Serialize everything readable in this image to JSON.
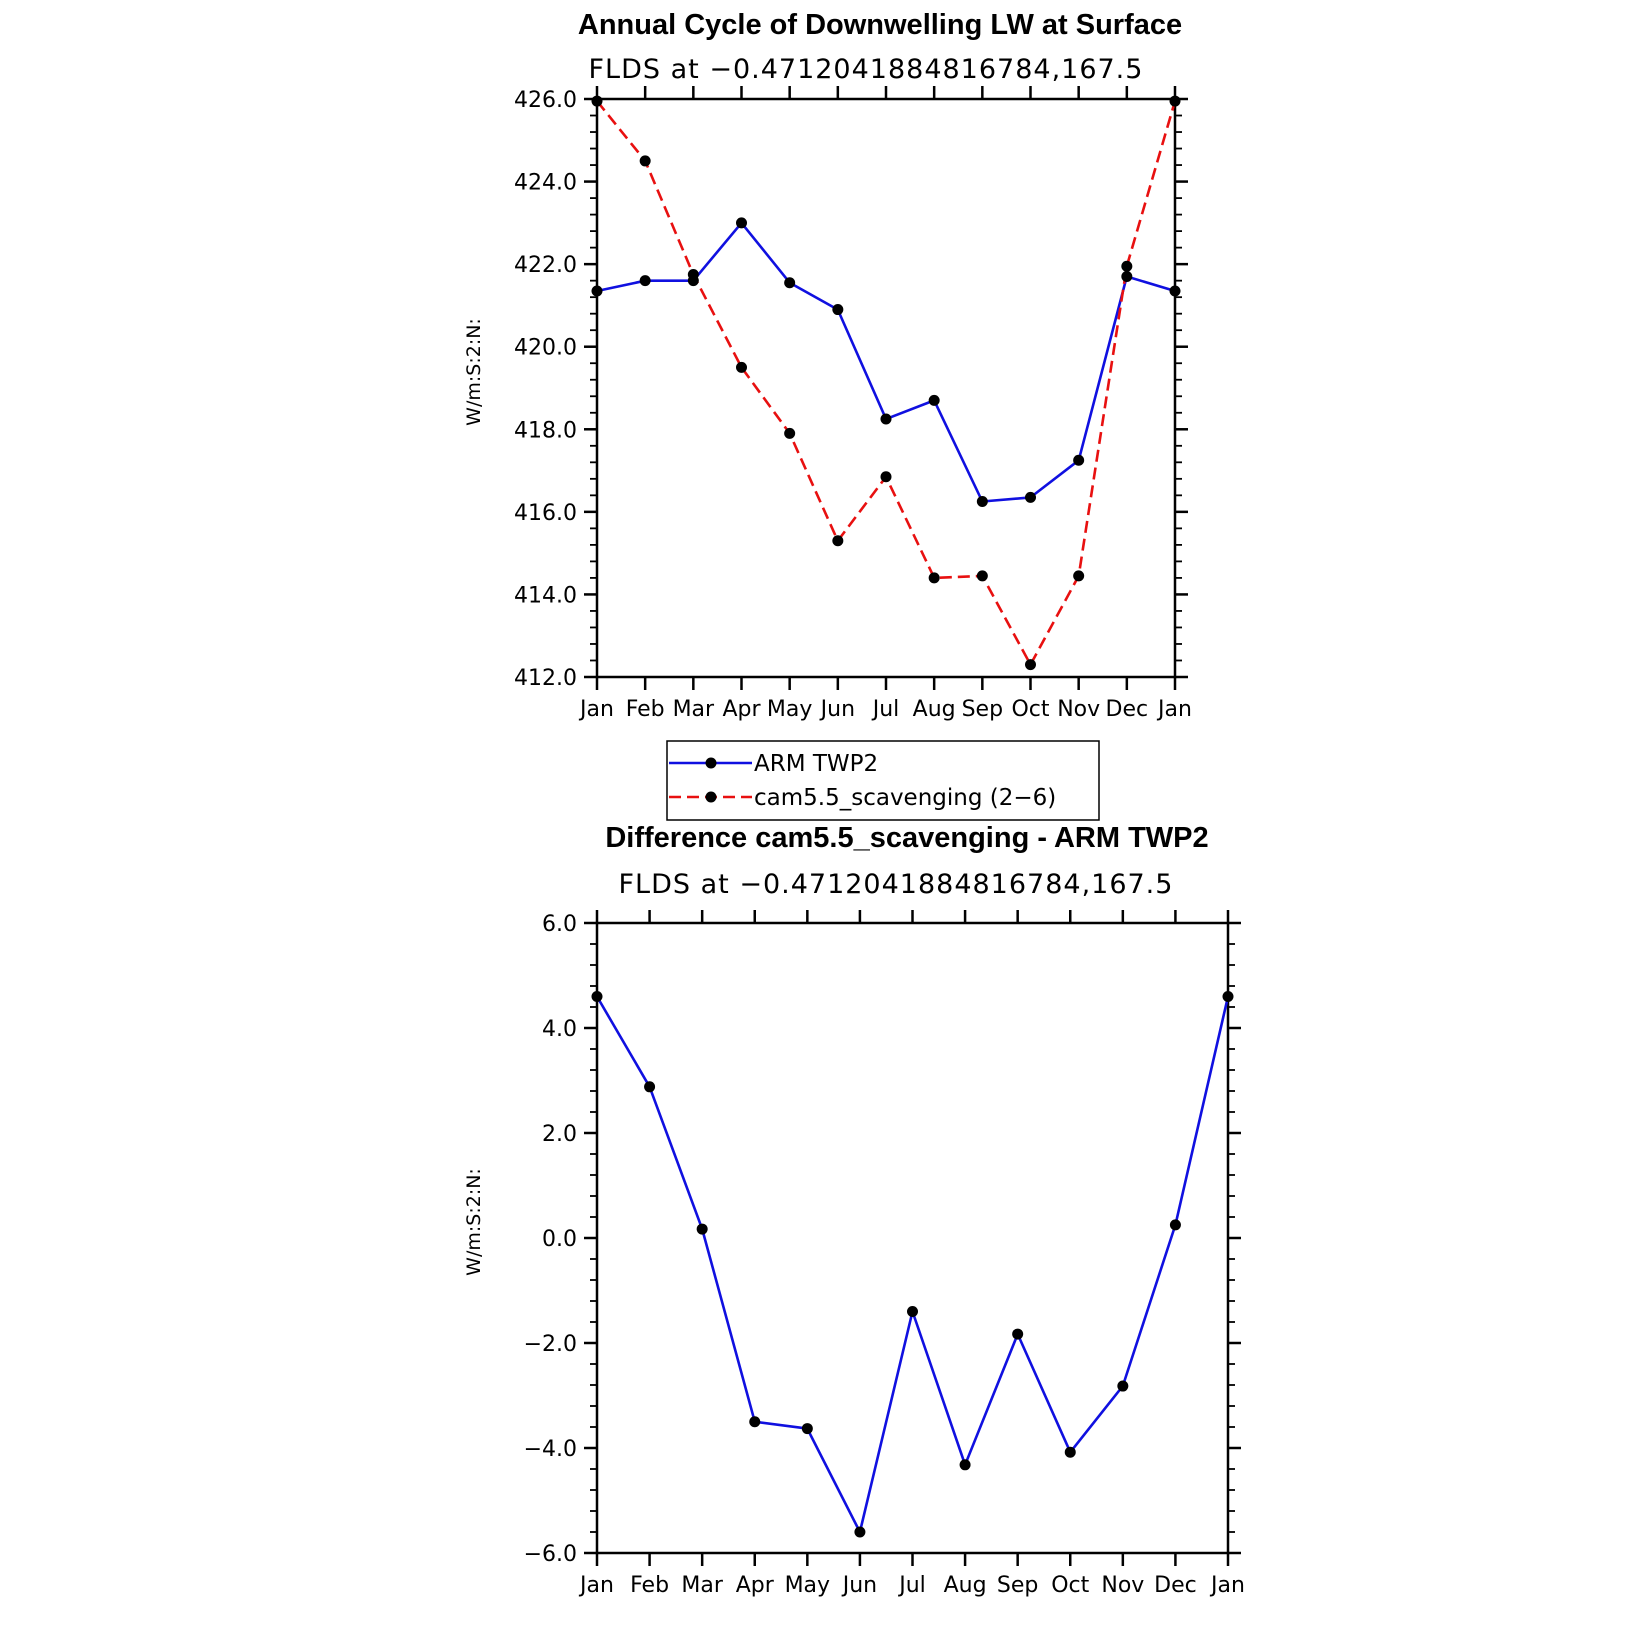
{
  "chart_data": [
    {
      "type": "line",
      "title": "Annual Cycle of Downwelling LW at Surface",
      "subtitle": "FLDS at −0.4712041884816784,167.5",
      "ylabel": "W/m:S:2:N:",
      "ylim": [
        412.0,
        426.0
      ],
      "yticks": [
        "412.0",
        "414.0",
        "416.0",
        "418.0",
        "420.0",
        "422.0",
        "424.0",
        "426.0"
      ],
      "categories": [
        "Jan",
        "Feb",
        "Mar",
        "Apr",
        "May",
        "Jun",
        "Jul",
        "Aug",
        "Sep",
        "Oct",
        "Nov",
        "Dec",
        "Jan"
      ],
      "grid": false,
      "legend_position": "bottom",
      "series": [
        {
          "name": "ARM TWP2",
          "color": "#1010e0",
          "style": "solid",
          "values": [
            421.35,
            421.6,
            421.6,
            423.0,
            421.55,
            420.9,
            418.25,
            418.7,
            416.25,
            416.35,
            417.25,
            421.7,
            421.35
          ]
        },
        {
          "name": "cam5.5_scavenging (2−6)",
          "color": "#e81010",
          "style": "dashed",
          "values": [
            425.95,
            424.5,
            421.75,
            419.5,
            417.9,
            415.3,
            416.85,
            414.4,
            414.45,
            412.3,
            414.45,
            421.95,
            425.95
          ]
        }
      ]
    },
    {
      "type": "line",
      "title": "Difference cam5.5_scavenging - ARM TWP2",
      "subtitle": "FLDS at −0.4712041884816784,167.5",
      "ylabel": "W/m:S:2:N:",
      "ylim": [
        -6.0,
        6.0
      ],
      "yticks": [
        "−6.0",
        "−4.0",
        "−2.0",
        "0.0",
        "2.0",
        "4.0",
        "6.0"
      ],
      "categories": [
        "Jan",
        "Feb",
        "Mar",
        "Apr",
        "May",
        "Jun",
        "Jul",
        "Aug",
        "Sep",
        "Oct",
        "Nov",
        "Dec",
        "Jan"
      ],
      "grid": false,
      "series": [
        {
          "color": "#1010e0",
          "style": "solid",
          "values": [
            4.6,
            2.88,
            0.17,
            -3.5,
            -3.63,
            -5.6,
            -1.4,
            -4.32,
            -1.83,
            -4.08,
            -2.82,
            0.25,
            4.6
          ]
        }
      ]
    }
  ]
}
